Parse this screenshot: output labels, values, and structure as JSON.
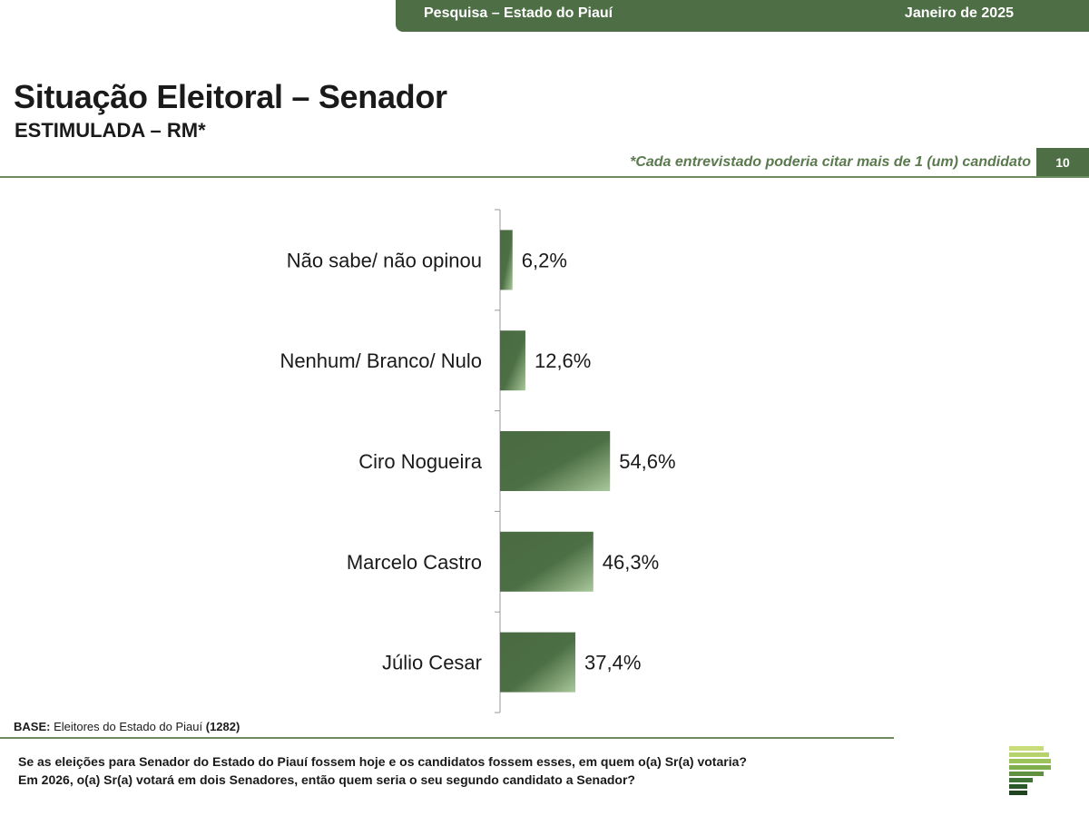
{
  "header": {
    "survey": "Pesquisa – Estado do Piauí",
    "date": "Janeiro de 2025"
  },
  "title": "Situação Eleitoral – Senador",
  "subtitle": "ESTIMULADA – RM*",
  "note": "*Cada entrevistado poderia citar mais de 1 (um) candidato",
  "page_number": "10",
  "base": {
    "label": "BASE:",
    "text": " Eleitores do Estado do Piauí ",
    "count": "(1282)"
  },
  "question": {
    "line1": "Se as eleições para Senador do Estado do Piauí fossem hoje e os candidatos fossem esses, em quem o(a) Sr(a) votaria?",
    "line2": "Em 2026, o(a) Sr(a) votará em dois Senadores, então quem seria o seu segundo candidato a Senador?"
  },
  "colors": {
    "brand_green": "#4e6e45",
    "bar_dark": "#4a6b42",
    "bar_light": "#a9c89a",
    "logo_greens": [
      "#c9dc7a",
      "#b5d36a",
      "#9cc25a",
      "#7fae4d",
      "#5f9141",
      "#3f7336",
      "#2b5a2a",
      "#1f4420"
    ]
  },
  "chart_data": {
    "type": "bar",
    "orientation": "horizontal",
    "categories": [
      "Não sabe/ não opinou",
      "Nenhum/ Branco/ Nulo",
      "Ciro Nogueira",
      "Marcelo Castro",
      "Júlio Cesar"
    ],
    "values": [
      6.2,
      12.6,
      54.6,
      46.3,
      37.4
    ],
    "labels": [
      "6,2%",
      "12,6%",
      "54,6%",
      "46,3%",
      "37,4%"
    ],
    "unit": "%",
    "xlim": [
      0,
      100
    ],
    "grid": false
  }
}
